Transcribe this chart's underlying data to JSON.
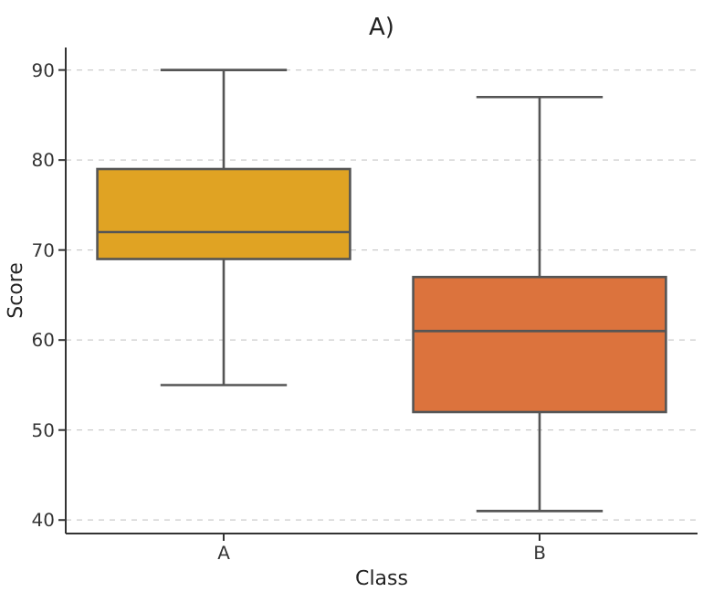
{
  "chart_data": {
    "type": "box",
    "title": "A)",
    "xlabel": "Class",
    "ylabel": "Score",
    "categories": [
      "A",
      "B"
    ],
    "series": [
      {
        "colors": [
          "#e0a323",
          "#dc733d"
        ],
        "boxes": [
          {
            "low": 55,
            "q1": 69,
            "median": 72,
            "q3": 79,
            "high": 90
          },
          {
            "low": 41,
            "q1": 52,
            "median": 61,
            "q3": 67,
            "high": 87
          }
        ]
      }
    ],
    "ylim": [
      38.5,
      92.5
    ],
    "yticks": [
      40,
      50,
      60,
      70,
      80,
      90
    ],
    "grid": "y"
  }
}
